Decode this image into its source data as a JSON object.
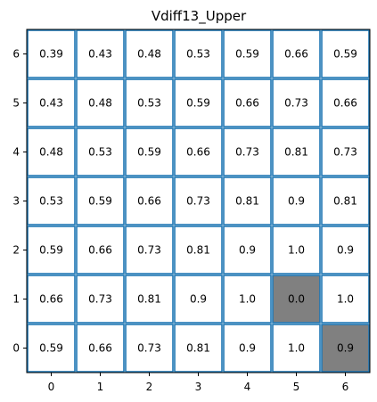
{
  "chart_data": {
    "type": "heatmap",
    "title": "Vdiff13_Upper",
    "x_ticks": [
      "0",
      "1",
      "2",
      "3",
      "4",
      "5",
      "6"
    ],
    "y_ticks": [
      "0",
      "1",
      "2",
      "3",
      "4",
      "5",
      "6"
    ],
    "rows": [
      {
        "y": "6",
        "values": [
          "0.39",
          "0.43",
          "0.48",
          "0.53",
          "0.59",
          "0.66",
          "0.59"
        ]
      },
      {
        "y": "5",
        "values": [
          "0.43",
          "0.48",
          "0.53",
          "0.59",
          "0.66",
          "0.73",
          "0.66"
        ]
      },
      {
        "y": "4",
        "values": [
          "0.48",
          "0.53",
          "0.59",
          "0.66",
          "0.73",
          "0.81",
          "0.73"
        ]
      },
      {
        "y": "3",
        "values": [
          "0.53",
          "0.59",
          "0.66",
          "0.73",
          "0.81",
          "0.9",
          "0.81"
        ]
      },
      {
        "y": "2",
        "values": [
          "0.59",
          "0.66",
          "0.73",
          "0.81",
          "0.9",
          "1.0",
          "0.9"
        ]
      },
      {
        "y": "1",
        "values": [
          "0.66",
          "0.73",
          "0.81",
          "0.9",
          "1.0",
          "0.0",
          "1.0"
        ]
      },
      {
        "y": "0",
        "values": [
          "0.59",
          "0.66",
          "0.73",
          "0.81",
          "0.9",
          "1.0",
          "0.9"
        ]
      }
    ],
    "highlighted_cells": [
      {
        "x": "5",
        "y": "1"
      },
      {
        "x": "6",
        "y": "0"
      }
    ],
    "colors": {
      "cell_fill": "#ffffff",
      "highlight_fill": "#808080",
      "grid_line": "#1f77b4",
      "axis_frame": "#000000"
    }
  }
}
